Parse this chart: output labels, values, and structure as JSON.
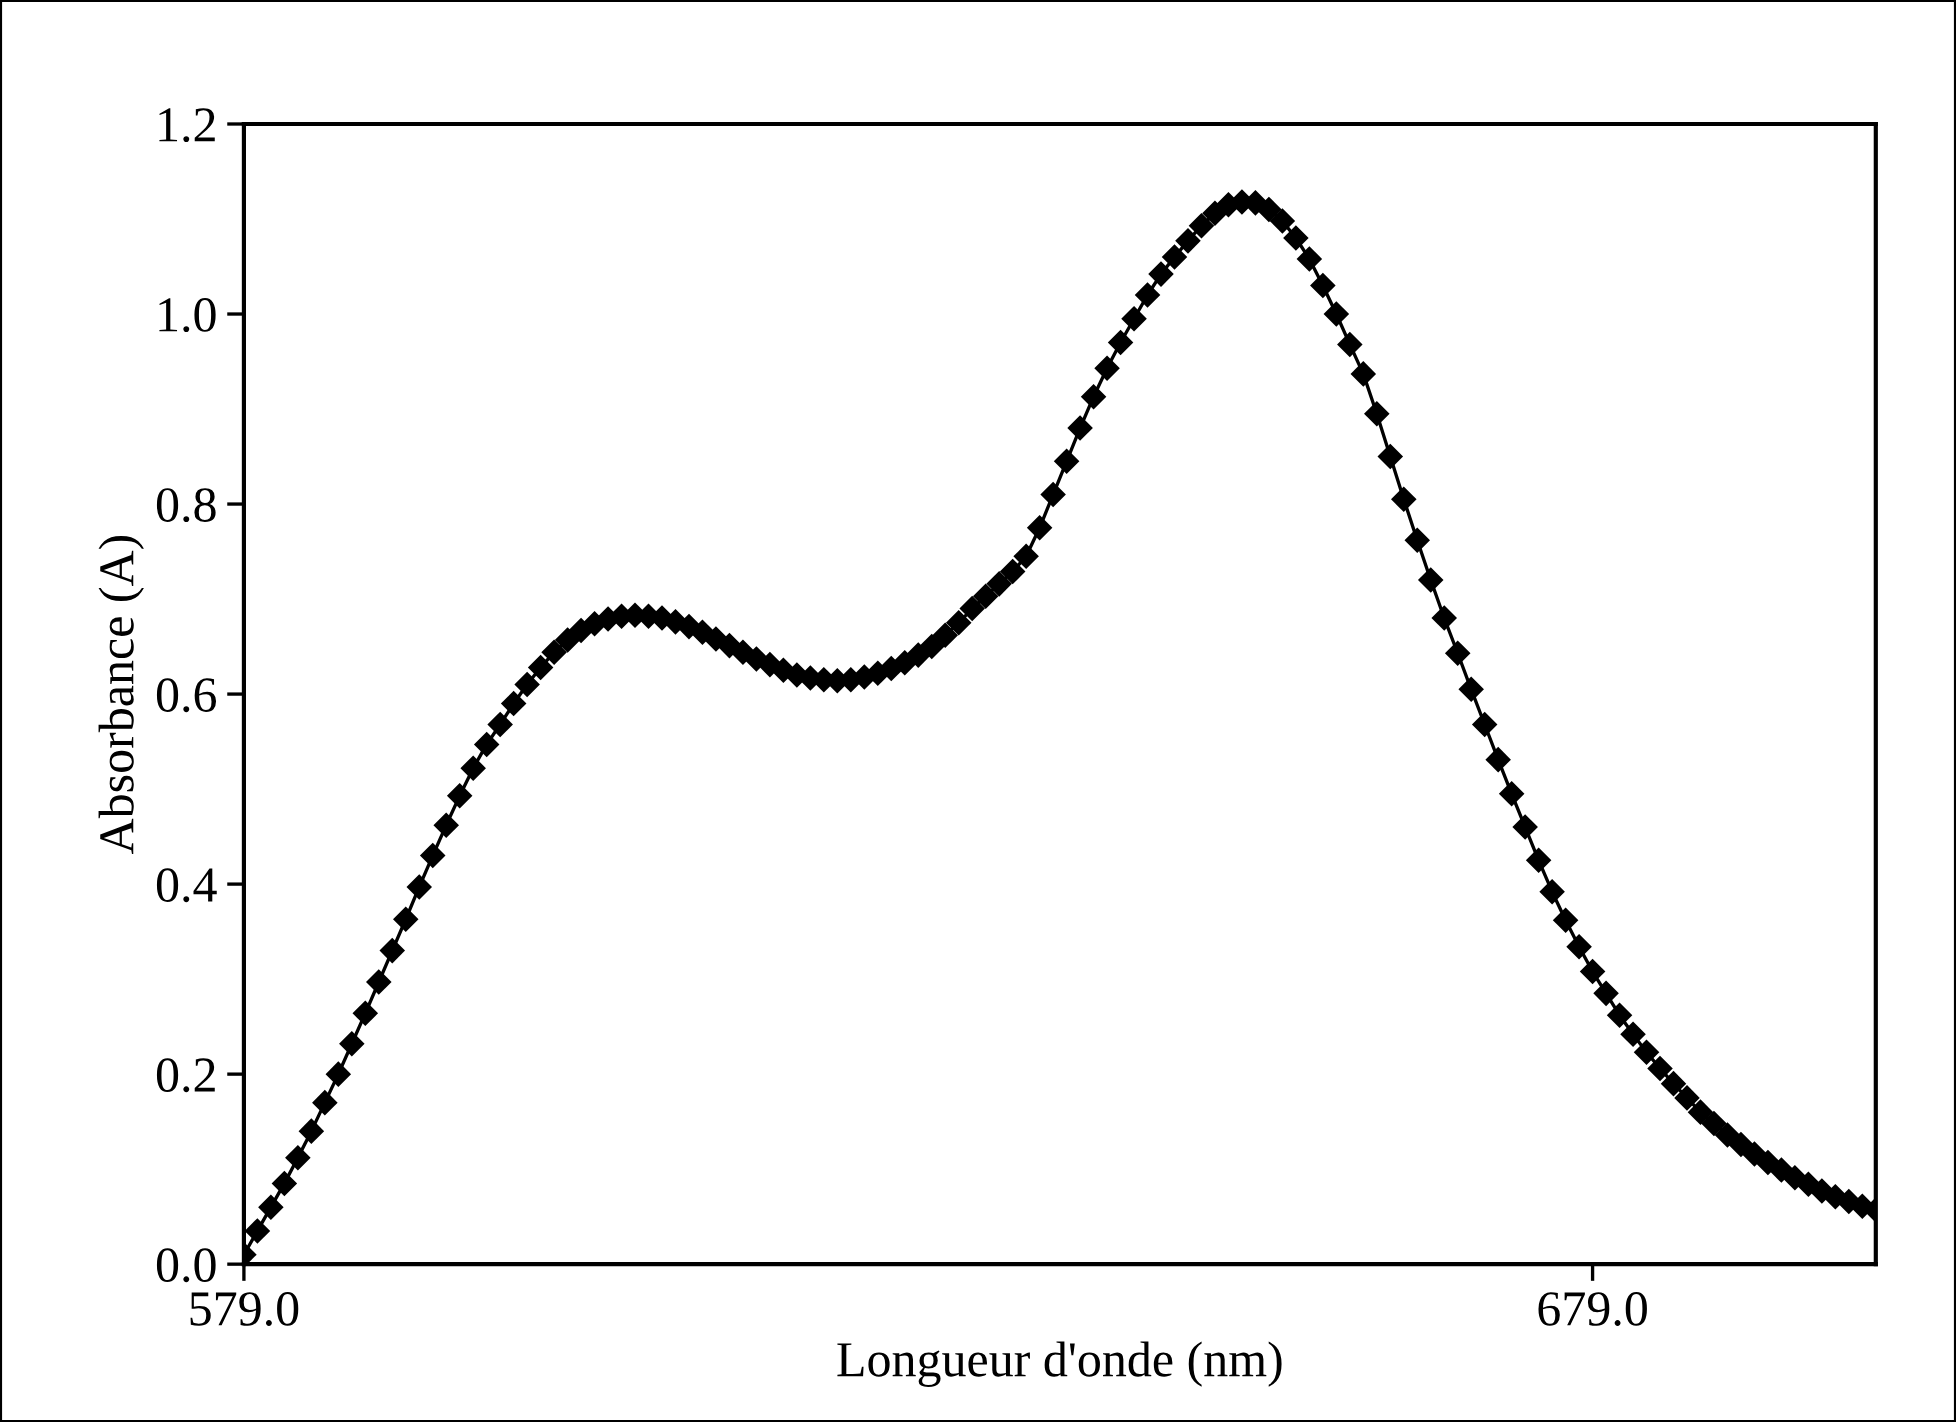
{
  "chart_data": {
    "type": "line",
    "xlabel": "Longueur d'onde (nm)",
    "ylabel": "Absorbance (A)",
    "xlim": [
      579,
      700
    ],
    "xticks": [
      {
        "value": 579,
        "label": "579.0"
      },
      {
        "value": 679,
        "label": "679.0"
      }
    ],
    "ylim": [
      0,
      1.2
    ],
    "yticks": [
      {
        "value": 0,
        "label": "0.0"
      },
      {
        "value": 0.2,
        "label": "0.2"
      },
      {
        "value": 0.4,
        "label": "0.4"
      },
      {
        "value": 0.6,
        "label": "0.6"
      },
      {
        "value": 0.8,
        "label": "0.8"
      },
      {
        "value": 1.0,
        "label": "1.0"
      },
      {
        "value": 1.2,
        "label": "1.2"
      }
    ],
    "grid": false,
    "legend": false,
    "marker": "diamond",
    "line_style": "solid",
    "x": [
      579,
      580,
      581,
      582,
      583,
      584,
      585,
      586,
      587,
      588,
      589,
      590,
      591,
      592,
      593,
      594,
      595,
      596,
      597,
      598,
      599,
      600,
      601,
      602,
      603,
      604,
      605,
      606,
      607,
      608,
      609,
      610,
      611,
      612,
      613,
      614,
      615,
      616,
      617,
      618,
      619,
      620,
      621,
      622,
      623,
      624,
      625,
      626,
      627,
      628,
      629,
      630,
      631,
      632,
      633,
      634,
      635,
      636,
      637,
      638,
      639,
      640,
      641,
      642,
      643,
      644,
      645,
      646,
      647,
      648,
      649,
      650,
      651,
      652,
      653,
      654,
      655,
      656,
      657,
      658,
      659,
      660,
      661,
      662,
      663,
      664,
      665,
      666,
      667,
      668,
      669,
      670,
      671,
      672,
      673,
      674,
      675,
      676,
      677,
      678,
      679,
      680,
      681,
      682,
      683,
      684,
      685,
      686,
      687,
      688,
      689,
      690,
      691,
      692,
      693,
      694,
      695,
      696,
      697,
      698,
      699,
      700
    ],
    "series": [
      {
        "color": "#000000",
        "values": [
          0.01,
          0.035,
          0.06,
          0.085,
          0.112,
          0.14,
          0.17,
          0.2,
          0.232,
          0.264,
          0.297,
          0.33,
          0.363,
          0.397,
          0.43,
          0.462,
          0.493,
          0.522,
          0.547,
          0.568,
          0.59,
          0.61,
          0.628,
          0.644,
          0.657,
          0.667,
          0.674,
          0.679,
          0.682,
          0.683,
          0.682,
          0.68,
          0.676,
          0.671,
          0.665,
          0.658,
          0.651,
          0.644,
          0.637,
          0.631,
          0.625,
          0.62,
          0.617,
          0.615,
          0.614,
          0.615,
          0.618,
          0.622,
          0.627,
          0.633,
          0.641,
          0.65,
          0.662,
          0.675,
          0.69,
          0.703,
          0.716,
          0.729,
          0.745,
          0.775,
          0.81,
          0.845,
          0.88,
          0.913,
          0.943,
          0.97,
          0.995,
          1.02,
          1.042,
          1.06,
          1.077,
          1.093,
          1.106,
          1.115,
          1.118,
          1.117,
          1.11,
          1.098,
          1.08,
          1.058,
          1.03,
          1.0,
          0.968,
          0.937,
          0.895,
          0.85,
          0.805,
          0.762,
          0.72,
          0.68,
          0.643,
          0.605,
          0.568,
          0.531,
          0.495,
          0.46,
          0.425,
          0.392,
          0.362,
          0.334,
          0.308,
          0.285,
          0.262,
          0.242,
          0.223,
          0.206,
          0.19,
          0.175,
          0.16,
          0.148,
          0.136,
          0.126,
          0.116,
          0.107,
          0.099,
          0.091,
          0.084,
          0.077,
          0.071,
          0.066,
          0.061,
          0.057
        ]
      }
    ]
  }
}
